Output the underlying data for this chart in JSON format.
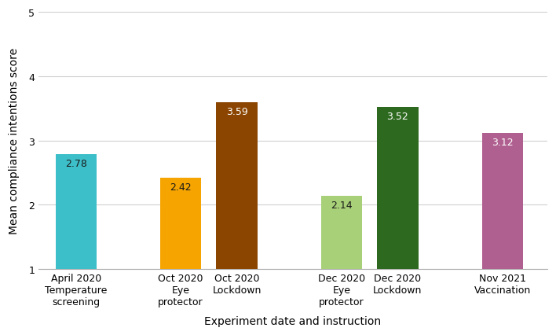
{
  "categories": [
    "April 2020\nTemperature\nscreening",
    "Oct 2020\nEye\nprotector",
    "Oct 2020\nLockdown",
    "Dec 2020\nEye\nprotector",
    "Dec 2020\nLockdown",
    "Nov 2021\nVaccination"
  ],
  "x_positions": [
    0.7,
    2.1,
    2.85,
    4.25,
    5.0,
    6.4
  ],
  "values": [
    2.78,
    2.42,
    3.59,
    2.14,
    3.52,
    3.12
  ],
  "bar_colors": [
    "#3DBFC9",
    "#F5A400",
    "#8B4500",
    "#A8D078",
    "#2D6A1F",
    "#B06090"
  ],
  "ylabel": "Mean compliance intentions score",
  "xlabel": "Experiment date and instruction",
  "ylim": [
    1,
    5
  ],
  "yticks": [
    1,
    2,
    3,
    4,
    5
  ],
  "label_colors": [
    "#1a1a1a",
    "#1a1a1a",
    "#ffffff",
    "#1a1a1a",
    "#ffffff",
    "#ffffff"
  ],
  "label_fontsize": 9,
  "axis_fontsize": 10,
  "tick_fontsize": 9,
  "background_color": "#ffffff",
  "grid_color": "#d0d0d0",
  "bar_width": 0.55
}
